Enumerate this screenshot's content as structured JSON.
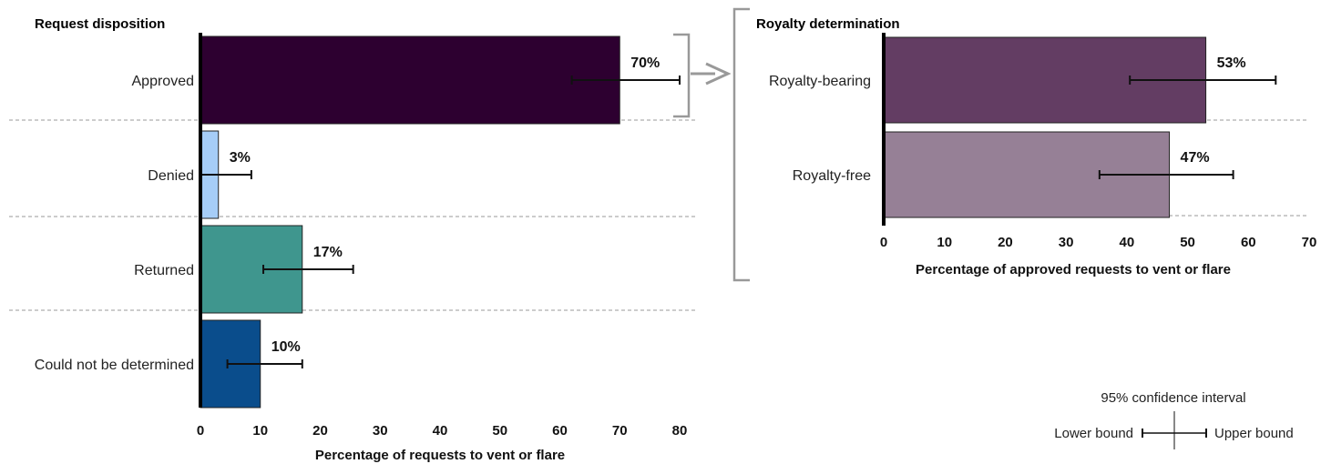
{
  "chart_data": [
    {
      "type": "bar",
      "orientation": "horizontal",
      "title": "Request disposition",
      "xlabel": "Percentage of requests to vent or flare",
      "xlim": [
        0,
        80
      ],
      "ticks": [
        0,
        10,
        20,
        30,
        40,
        50,
        60,
        70,
        80
      ],
      "categories": [
        "Approved",
        "Denied",
        "Returned",
        "Could not be determined"
      ],
      "values": [
        70,
        3,
        17,
        10
      ],
      "value_labels": [
        "70%",
        "3%",
        "17%",
        "10%"
      ],
      "ci_lower": [
        62,
        0,
        10.5,
        4.5
      ],
      "ci_upper": [
        80,
        8.5,
        25.5,
        17
      ],
      "colors": [
        "#2d0030",
        "#a6cdf7",
        "#3f968e",
        "#0a4d8c"
      ]
    },
    {
      "type": "bar",
      "orientation": "horizontal",
      "title": "Royalty determination",
      "xlabel": "Percentage of approved requests to vent or flare",
      "xlim": [
        0,
        70
      ],
      "ticks": [
        0,
        10,
        20,
        30,
        40,
        50,
        60,
        70
      ],
      "categories": [
        "Royalty-bearing",
        "Royalty-free"
      ],
      "values": [
        53,
        47
      ],
      "value_labels": [
        "53%",
        "47%"
      ],
      "ci_lower": [
        40.5,
        35.5
      ],
      "ci_upper": [
        64.5,
        57.5
      ],
      "colors": [
        "#633d63",
        "#968096"
      ]
    }
  ],
  "legend": {
    "title": "95% confidence interval",
    "lower_label": "Lower bound",
    "upper_label": "Upper bound"
  },
  "colors": {
    "connector": "#999999",
    "divider": "#999999",
    "axis": "#000000"
  }
}
